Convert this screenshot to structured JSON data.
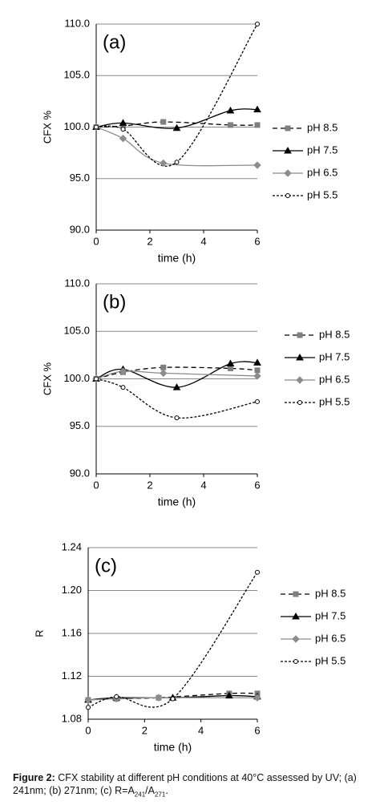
{
  "chart_data": [
    {
      "type": "line",
      "title": "(a)",
      "ylabel": "CFX %",
      "xlabel": "time (h)",
      "xlim": [
        0,
        6
      ],
      "xticks": [
        0,
        2,
        4,
        6
      ],
      "ylim": [
        90,
        110
      ],
      "yticks": [
        {
          "value": 90,
          "label": "90.0"
        },
        {
          "value": 95,
          "label": "95.0"
        },
        {
          "value": 100,
          "label": "100.0"
        },
        {
          "value": 105,
          "label": "105.0"
        },
        {
          "value": 110,
          "label": "110.0"
        }
      ],
      "grid": true,
      "legend": "right",
      "series": [
        {
          "name": "pH 8.5",
          "color": "#000000",
          "marker_color": "#7f7f7f",
          "marker": "square",
          "dash": "6,4",
          "x": [
            0,
            1,
            2.5,
            5,
            6
          ],
          "values": [
            100,
            100.1,
            100.5,
            100.2,
            100.2
          ]
        },
        {
          "name": "pH 7.5",
          "color": "#000000",
          "marker_color": "#000000",
          "marker": "triangle",
          "x": [
            0,
            1,
            3,
            5,
            6
          ],
          "values": [
            100,
            100.4,
            99.9,
            101.6,
            101.7
          ]
        },
        {
          "name": "pH 6.5",
          "color": "#8c8c8c",
          "marker_color": "#8c8c8c",
          "marker": "diamond",
          "x": [
            0,
            1,
            2.5,
            6
          ],
          "values": [
            100,
            98.9,
            96.5,
            96.3
          ]
        },
        {
          "name": "pH 5.5",
          "color": "#000000",
          "marker_color": "#ffffff",
          "marker": "circle",
          "dash": "3,2",
          "x": [
            0,
            1,
            3,
            6
          ],
          "values": [
            100,
            99.8,
            96.6,
            110
          ]
        }
      ]
    },
    {
      "type": "line",
      "title": "(b)",
      "ylabel": "CFX %",
      "xlabel": "time (h)",
      "xlim": [
        0,
        6
      ],
      "xticks": [
        0,
        2,
        4,
        6
      ],
      "ylim": [
        90,
        110
      ],
      "yticks": [
        {
          "value": 90,
          "label": "90.0"
        },
        {
          "value": 95,
          "label": "95.0"
        },
        {
          "value": 100,
          "label": "100.0"
        },
        {
          "value": 105,
          "label": "105.0"
        },
        {
          "value": 110,
          "label": "110.0"
        }
      ],
      "grid": true,
      "legend": "right",
      "series": [
        {
          "name": "pH 8.5",
          "color": "#000000",
          "marker_color": "#7f7f7f",
          "marker": "square",
          "dash": "6,4",
          "x": [
            0,
            1,
            2.5,
            5,
            6
          ],
          "values": [
            100,
            100.7,
            101.2,
            101.1,
            100.9
          ]
        },
        {
          "name": "pH 7.5",
          "color": "#000000",
          "marker_color": "#000000",
          "marker": "triangle",
          "x": [
            0,
            1,
            3,
            5,
            6
          ],
          "values": [
            100,
            101,
            99.1,
            101.6,
            101.7
          ]
        },
        {
          "name": "pH 6.5",
          "color": "#8c8c8c",
          "marker_color": "#8c8c8c",
          "marker": "diamond",
          "x": [
            0,
            1,
            2.5,
            6
          ],
          "values": [
            100,
            100.8,
            100.6,
            100.3
          ]
        },
        {
          "name": "pH 5.5",
          "color": "#000000",
          "marker_color": "#ffffff",
          "marker": "circle",
          "dash": "3,2",
          "x": [
            0,
            1,
            3,
            6
          ],
          "values": [
            100,
            99.1,
            95.9,
            97.6
          ]
        }
      ]
    },
    {
      "type": "line",
      "title": "(c)",
      "ylabel": "R",
      "xlabel": "time (h)",
      "xlim": [
        0,
        6
      ],
      "xticks": [
        0,
        2,
        4,
        6
      ],
      "ylim": [
        1.08,
        1.24
      ],
      "yticks": [
        1.08,
        1.12,
        1.16,
        {
          "value": 1.2,
          "label": "1.20"
        },
        1.24
      ],
      "grid": true,
      "legend": "right",
      "series": [
        {
          "name": "pH 8.5",
          "color": "#000000",
          "marker_color": "#7f7f7f",
          "marker": "square",
          "dash": "6,4",
          "x": [
            0,
            1,
            2.5,
            5,
            6
          ],
          "values": [
            1.098,
            1.099,
            1.1,
            1.104,
            1.104
          ]
        },
        {
          "name": "pH 7.5",
          "color": "#000000",
          "marker_color": "#000000",
          "marker": "triangle",
          "x": [
            0,
            1,
            3,
            5,
            6
          ],
          "values": [
            1.098,
            1.1,
            1.1,
            1.102,
            1.101
          ]
        },
        {
          "name": "pH 6.5",
          "color": "#8c8c8c",
          "marker_color": "#8c8c8c",
          "marker": "diamond",
          "x": [
            0,
            1,
            2.5,
            6
          ],
          "values": [
            1.098,
            1.099,
            1.1,
            1.1
          ]
        },
        {
          "name": "pH 5.5",
          "color": "#000000",
          "marker_color": "#ffffff",
          "marker": "circle",
          "dash": "3,2",
          "x": [
            0,
            1,
            3,
            6
          ],
          "values": [
            1.091,
            1.101,
            1.099,
            1.217
          ]
        }
      ]
    }
  ],
  "caption": {
    "label": "Figure 2:",
    "text": "CFX stability at different pH conditions at 40°C assessed by UV; (a) 241nm; (b) 271nm; (c) R=A",
    "sub1": "241",
    "mid": "/A",
    "sub2": "271",
    "end": "."
  }
}
